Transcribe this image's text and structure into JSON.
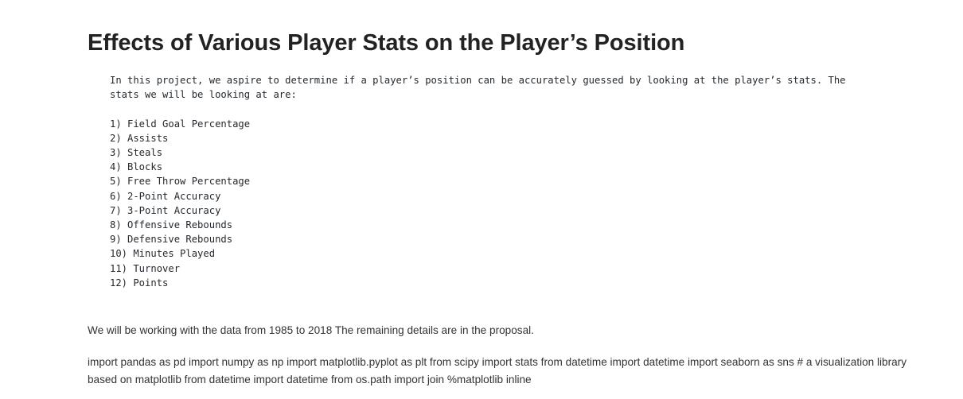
{
  "document": {
    "title": "Effects of Various Player Stats on the Player’s Position",
    "intro_line_1": "In this project, we aspire to determine if a player’s position can be accurately guessed by looking at the player’s stats. The",
    "intro_line_2": "stats we will be looking at are:",
    "stats_list": [
      "1) Field Goal Percentage",
      "2) Assists",
      "3) Steals",
      "4) Blocks",
      "5) Free Throw Percentage",
      "6) 2-Point Accuracy",
      "7) 3-Point Accuracy",
      "8) Offensive Rebounds",
      "9) Defensive Rebounds",
      "10) Minutes Played",
      "11) Turnover",
      "12) Points"
    ],
    "data_paragraph": "We will be working with the data from 1985 to 2018 The remaining details are in the proposal.",
    "imports_paragraph": "import pandas as pd import numpy as np import matplotlib.pyplot as plt from scipy import stats from datetime import datetime import seaborn as sns # a visualization library based on matplotlib from datetime import datetime from os.path import join %matplotlib inline"
  }
}
